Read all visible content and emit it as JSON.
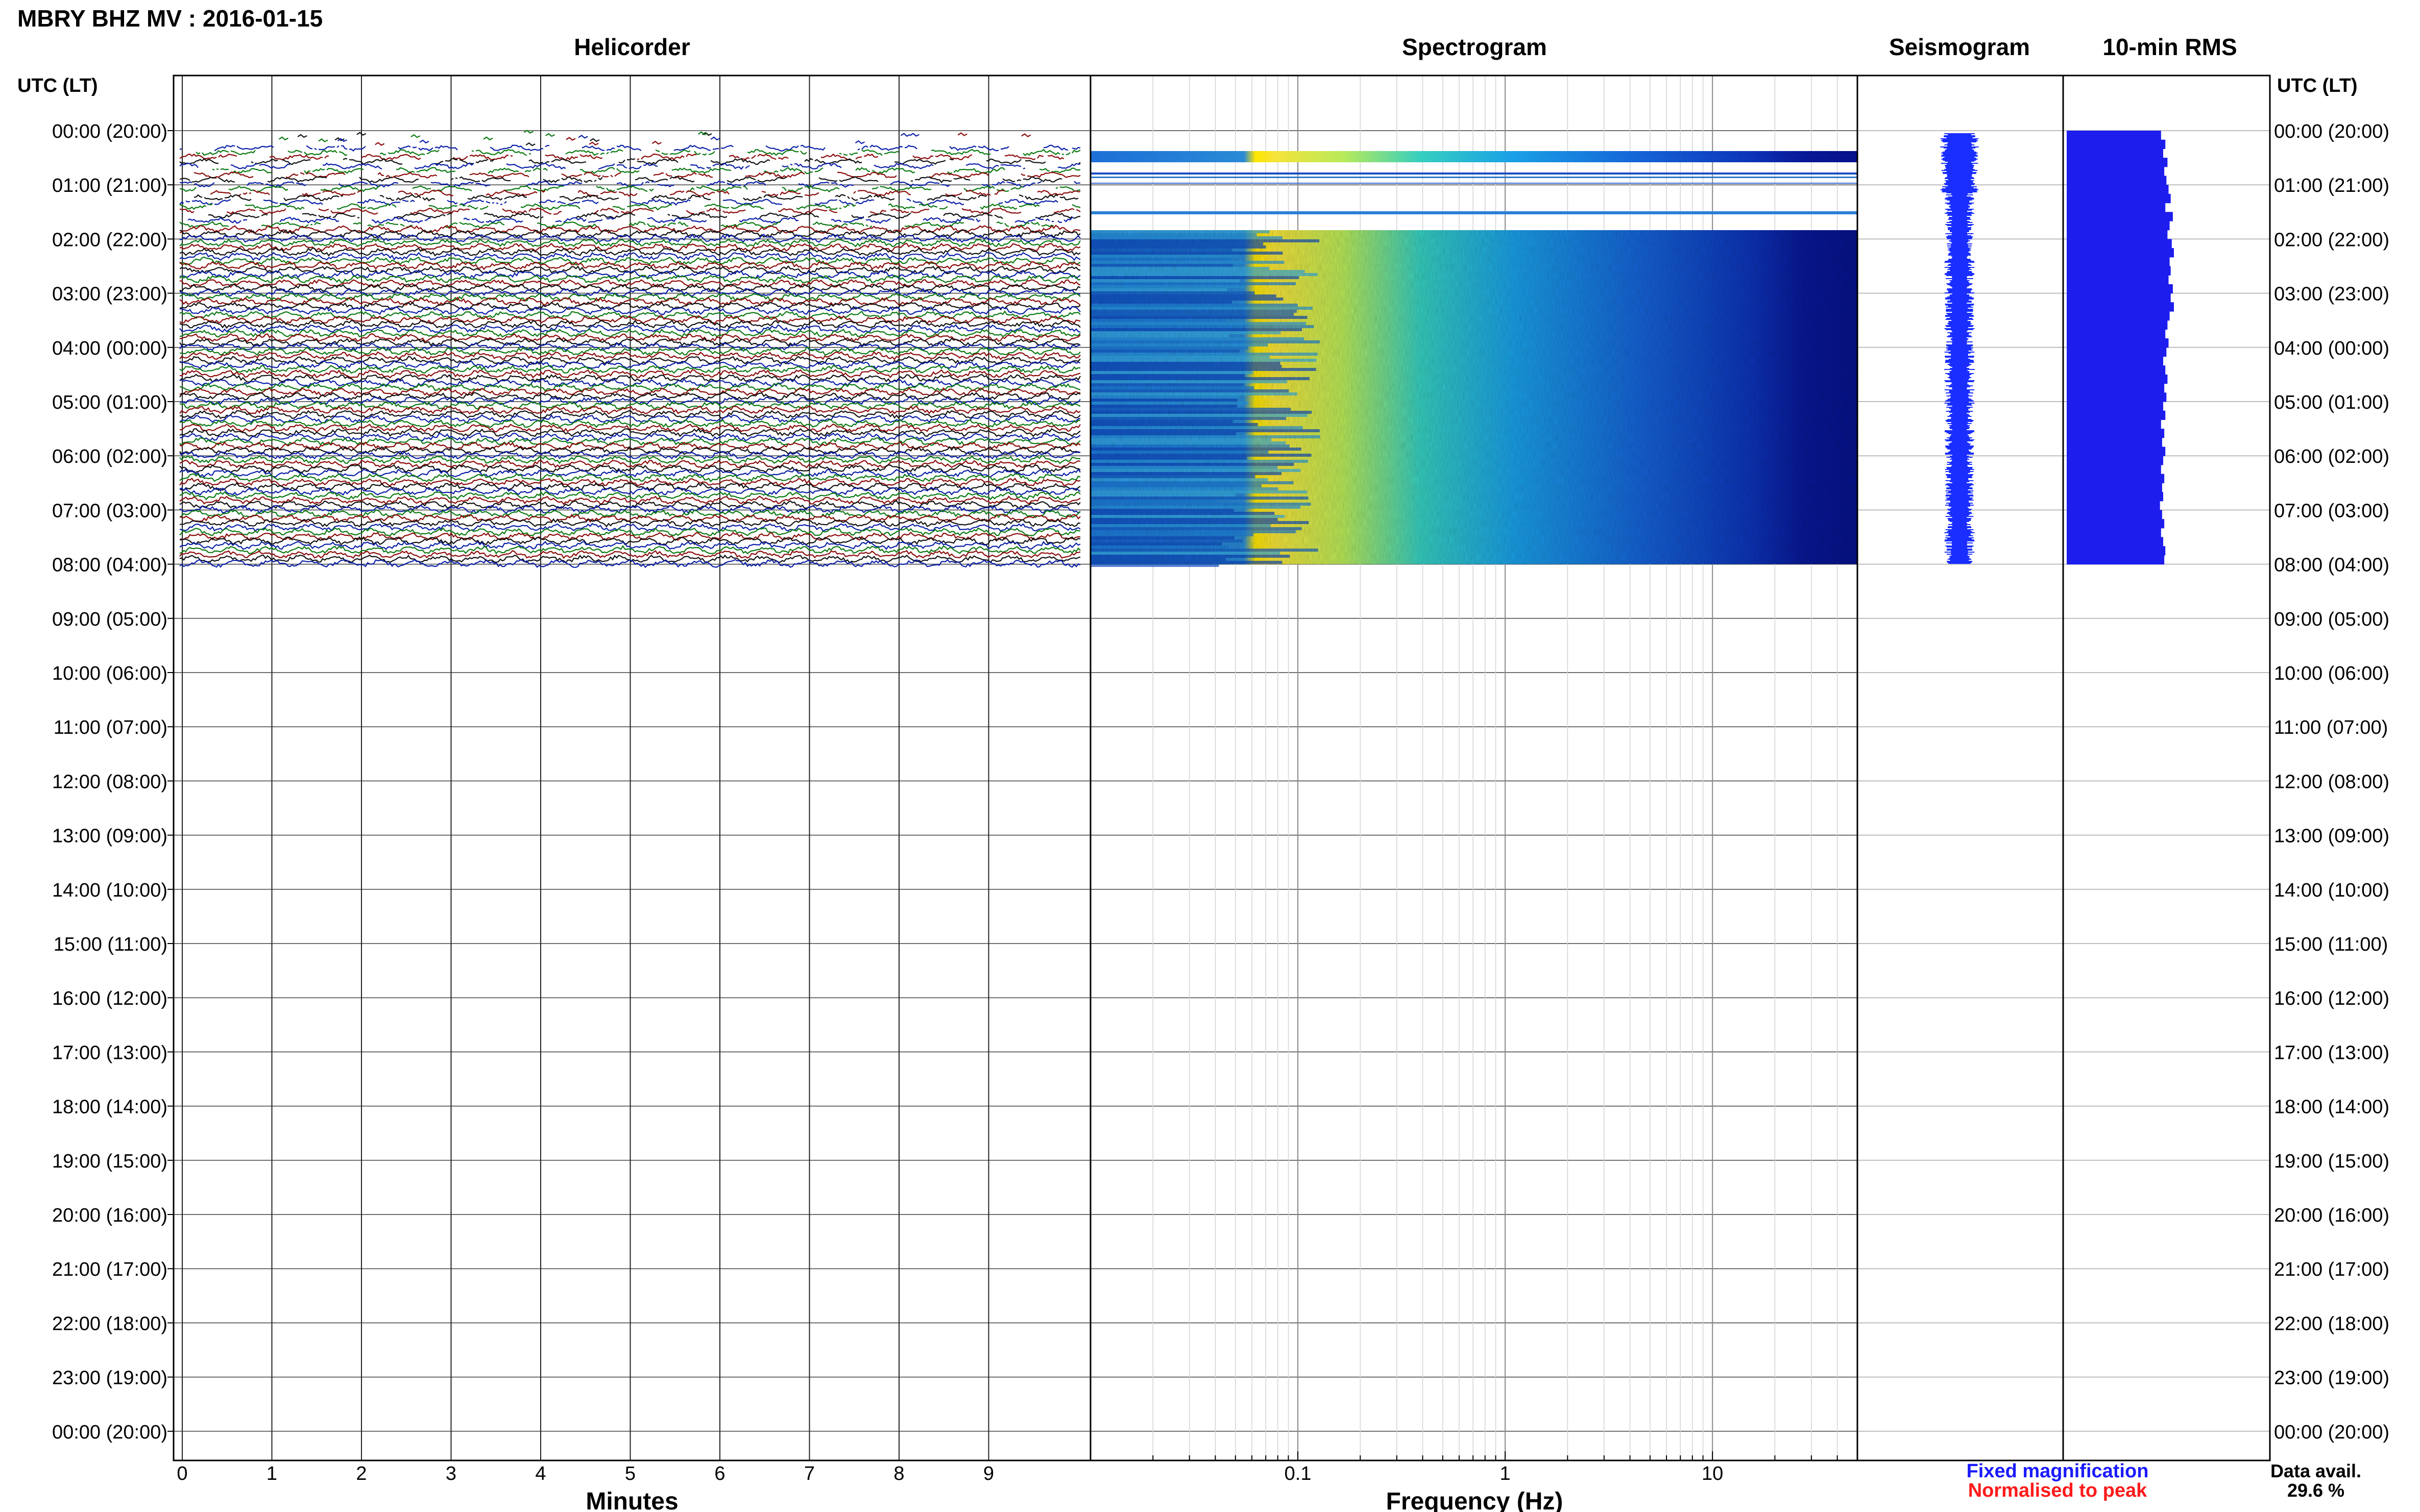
{
  "chart_data": {
    "type": "helicorder",
    "title": "MBRY BHZ MV : 2016-01-15",
    "panels": {
      "helicorder": "Helicorder",
      "spectrogram": "Spectrogram",
      "seismogram": "Seismogram",
      "rms": "10-min RMS"
    },
    "time_axis_label": "UTC (LT)",
    "time_labels": [
      "00:00 (20:00)",
      "01:00 (21:00)",
      "02:00 (22:00)",
      "03:00 (23:00)",
      "04:00 (00:00)",
      "05:00 (01:00)",
      "06:00 (02:00)",
      "07:00 (03:00)",
      "08:00 (04:00)",
      "09:00 (05:00)",
      "10:00 (06:00)",
      "11:00 (07:00)",
      "12:00 (08:00)",
      "13:00 (09:00)",
      "14:00 (10:00)",
      "15:00 (11:00)",
      "16:00 (12:00)",
      "17:00 (13:00)",
      "18:00 (14:00)",
      "19:00 (15:00)",
      "20:00 (16:00)",
      "21:00 (17:00)",
      "22:00 (18:00)",
      "23:00 (19:00)",
      "00:00 (20:00)"
    ],
    "helicorder_xlabel": "Minutes",
    "helicorder_xticks": [
      0,
      1,
      2,
      3,
      4,
      5,
      6,
      7,
      8,
      9
    ],
    "helicorder_xlim": [
      0,
      10
    ],
    "spectrogram_xlabel": "Frequency (Hz)",
    "spectrogram_xscale": "log",
    "spectrogram_xlim": [
      0.01,
      50
    ],
    "spectrogram_xticks": [
      0.1,
      1,
      10
    ],
    "data_end_hour": 8,
    "trace_colors": [
      "#0a1fa8",
      "#0b7a12",
      "#8c0c0c",
      "#111111"
    ],
    "rms_values": [
      0.88,
      0.92,
      0.9,
      0.94,
      0.91,
      0.93,
      0.95,
      0.97,
      0.92,
      0.99,
      0.96,
      0.94,
      0.98,
      1.0,
      0.96,
      0.97,
      0.95,
      0.99,
      0.97,
      1.0,
      0.96,
      0.94,
      0.92,
      0.95,
      0.93,
      0.9,
      0.92,
      0.94,
      0.91,
      0.93,
      0.9,
      0.92,
      0.88,
      0.91,
      0.89,
      0.92,
      0.9,
      0.88,
      0.91,
      0.89,
      0.9,
      0.87,
      0.89,
      0.91,
      0.88,
      0.9,
      0.92,
      0.91
    ],
    "legend": {
      "fixed": "Fixed magnification",
      "normalised": "Normalised to peak",
      "fixed_color": "#1a1aff",
      "normalised_color": "#ff1a1a"
    },
    "data_avail_label": "Data avail.",
    "data_avail_value": "29.6 %"
  }
}
